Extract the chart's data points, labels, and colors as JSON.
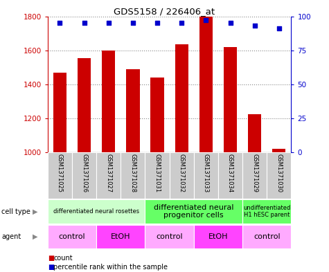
{
  "title": "GDS5158 / 226406_at",
  "samples": [
    "GSM1371025",
    "GSM1371026",
    "GSM1371027",
    "GSM1371028",
    "GSM1371031",
    "GSM1371032",
    "GSM1371033",
    "GSM1371034",
    "GSM1371029",
    "GSM1371030"
  ],
  "counts": [
    1470,
    1555,
    1600,
    1490,
    1440,
    1635,
    1800,
    1620,
    1225,
    1020
  ],
  "percentiles": [
    95,
    95,
    95,
    95,
    95,
    95,
    97,
    95,
    93,
    91
  ],
  "ylim_left": [
    1000,
    1800
  ],
  "ylim_right": [
    0,
    100
  ],
  "yticks_left": [
    1000,
    1200,
    1400,
    1600,
    1800
  ],
  "yticks_right": [
    0,
    25,
    50,
    75,
    100
  ],
  "bar_color": "#cc0000",
  "dot_color": "#0000cc",
  "cell_type_groups": [
    {
      "label": "differentiated neural rosettes",
      "start": 0,
      "end": 4,
      "color": "#ccffcc",
      "fontsize": 6
    },
    {
      "label": "differentiated neural\nprogenitor cells",
      "start": 4,
      "end": 8,
      "color": "#66ff66",
      "fontsize": 8
    },
    {
      "label": "undifferentiated\nH1 hESC parent",
      "start": 8,
      "end": 10,
      "color": "#66ff66",
      "fontsize": 6
    }
  ],
  "agent_groups": [
    {
      "label": "control",
      "start": 0,
      "end": 2,
      "color": "#ffaaff"
    },
    {
      "label": "EtOH",
      "start": 2,
      "end": 4,
      "color": "#ff44ff"
    },
    {
      "label": "control",
      "start": 4,
      "end": 6,
      "color": "#ffaaff"
    },
    {
      "label": "EtOH",
      "start": 6,
      "end": 8,
      "color": "#ff44ff"
    },
    {
      "label": "control",
      "start": 8,
      "end": 10,
      "color": "#ffaaff"
    }
  ],
  "sample_bg_color": "#cccccc",
  "legend_count_color": "#cc0000",
  "legend_pct_color": "#0000cc",
  "left_axis_color": "#cc0000",
  "right_axis_color": "#0000cc"
}
